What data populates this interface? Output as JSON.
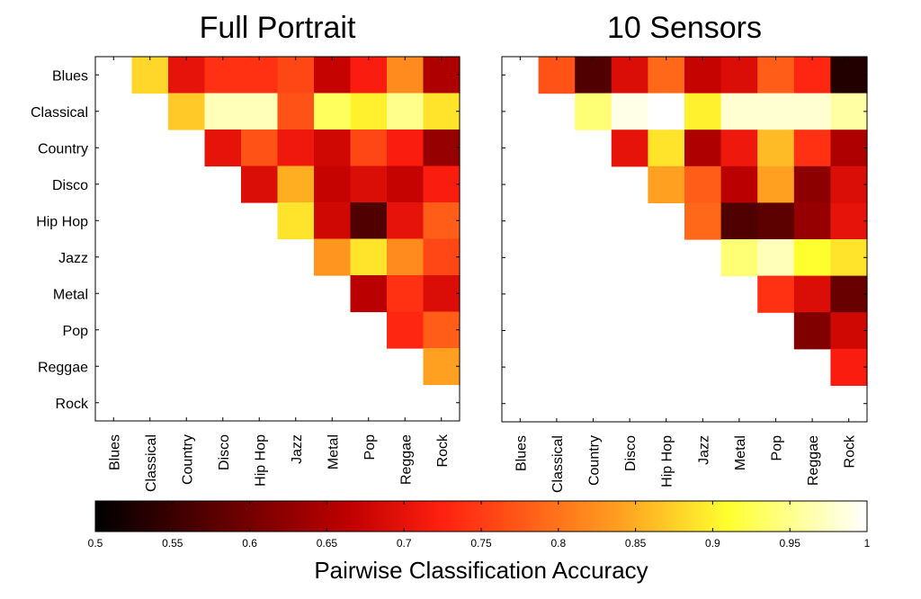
{
  "chart_data": {
    "type": "heatmap",
    "categories": [
      "Blues",
      "Classical",
      "Country",
      "Disco",
      "Hip Hop",
      "Jazz",
      "Metal",
      "Pop",
      "Reggae",
      "Rock"
    ],
    "colorbar": {
      "label": "Pairwise Classification Accuracy",
      "range": [
        0.5,
        1.0
      ],
      "ticks": [
        "0.5",
        "0.55",
        "0.6",
        "0.65",
        "0.7",
        "0.75",
        "0.8",
        "0.85",
        "0.9",
        "0.95",
        "1"
      ]
    },
    "panels": [
      {
        "title": "Full Portrait",
        "values": [
          [
            null,
            0.88,
            0.7,
            0.74,
            0.74,
            0.76,
            0.67,
            0.72,
            0.82,
            0.65
          ],
          [
            null,
            null,
            0.87,
            0.97,
            0.97,
            0.77,
            0.93,
            0.9,
            0.95,
            0.89
          ],
          [
            null,
            null,
            null,
            0.7,
            0.77,
            0.71,
            0.68,
            0.76,
            0.72,
            0.63
          ],
          [
            null,
            null,
            null,
            null,
            0.69,
            0.85,
            0.67,
            0.69,
            0.67,
            0.72
          ],
          [
            null,
            null,
            null,
            null,
            null,
            0.89,
            0.68,
            0.57,
            0.7,
            0.78
          ],
          [
            null,
            null,
            null,
            null,
            null,
            null,
            0.83,
            0.89,
            0.82,
            0.76
          ],
          [
            null,
            null,
            null,
            null,
            null,
            null,
            null,
            0.66,
            0.74,
            0.69
          ],
          [
            null,
            null,
            null,
            null,
            null,
            null,
            null,
            null,
            0.73,
            0.78
          ],
          [
            null,
            null,
            null,
            null,
            null,
            null,
            null,
            null,
            null,
            0.84
          ],
          [
            null,
            null,
            null,
            null,
            null,
            null,
            null,
            null,
            null,
            null
          ]
        ]
      },
      {
        "title": "10 Sensors",
        "values": [
          [
            null,
            0.77,
            0.57,
            0.69,
            0.79,
            0.67,
            0.69,
            0.78,
            0.73,
            0.53
          ],
          [
            null,
            null,
            0.94,
            0.99,
            1.0,
            0.9,
            0.98,
            0.98,
            0.98,
            0.96
          ],
          [
            null,
            null,
            null,
            0.7,
            0.89,
            0.65,
            0.71,
            0.86,
            0.74,
            0.65
          ],
          [
            null,
            null,
            null,
            null,
            0.84,
            0.78,
            0.66,
            0.84,
            0.62,
            0.69
          ],
          [
            null,
            null,
            null,
            null,
            null,
            0.79,
            0.57,
            0.58,
            0.63,
            0.7
          ],
          [
            null,
            null,
            null,
            null,
            null,
            null,
            0.94,
            0.97,
            0.91,
            0.89
          ],
          [
            null,
            null,
            null,
            null,
            null,
            null,
            null,
            0.74,
            0.69,
            0.59
          ],
          [
            null,
            null,
            null,
            null,
            null,
            null,
            null,
            null,
            0.61,
            0.68
          ],
          [
            null,
            null,
            null,
            null,
            null,
            null,
            null,
            null,
            null,
            0.72
          ],
          [
            null,
            null,
            null,
            null,
            null,
            null,
            null,
            null,
            null,
            null
          ]
        ]
      }
    ]
  }
}
